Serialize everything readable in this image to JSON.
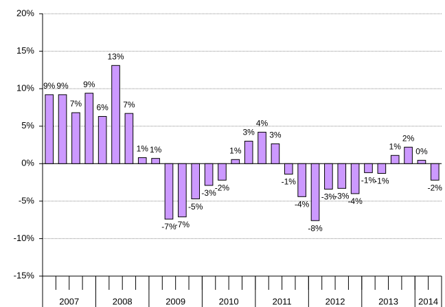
{
  "chart_data": {
    "type": "bar",
    "categories": [
      null,
      null,
      null,
      null,
      null,
      null,
      null,
      null,
      null,
      null,
      null,
      null,
      null,
      null,
      null,
      null,
      null,
      null,
      null,
      null,
      null,
      null,
      null,
      null,
      null,
      null,
      null,
      null,
      null,
      null
    ],
    "x_groups": [
      {
        "label": "2007",
        "count": 4
      },
      {
        "label": "2008",
        "count": 4
      },
      {
        "label": "2009",
        "count": 4
      },
      {
        "label": "2010",
        "count": 4
      },
      {
        "label": "2011",
        "count": 4
      },
      {
        "label": "2012",
        "count": 4
      },
      {
        "label": "2013",
        "count": 4
      },
      {
        "label": "2014",
        "count": 2
      }
    ],
    "values": [
      9.2,
      9.2,
      6.8,
      9.4,
      6.3,
      13.1,
      6.7,
      0.8,
      0.7,
      -7.4,
      -7.1,
      -4.7,
      -2.9,
      -2.2,
      0.55,
      3.0,
      4.2,
      2.65,
      -1.4,
      -4.4,
      -7.6,
      -3.4,
      -3.3,
      -4.0,
      -1.2,
      -1.3,
      1.1,
      2.2,
      0.45,
      -2.2
    ],
    "value_labels": [
      "9%",
      "9%",
      "7%",
      "9%",
      "6%",
      "13%",
      "7%",
      "1%",
      "1%",
      "-7%",
      "-7%",
      "-5%",
      "-3%",
      "-2%",
      "1%",
      "3%",
      "4%",
      "3%",
      "-1%",
      "-4%",
      "-8%",
      "-3%",
      "-3%",
      "-4%",
      "-1%",
      "-1%",
      "1%",
      "2%",
      "0%",
      "-2%"
    ],
    "color": "#cc99ff",
    "ylim": [
      -15,
      20
    ],
    "yticks": [
      {
        "value": -15,
        "label": "-15%"
      },
      {
        "value": -10,
        "label": "-10%"
      },
      {
        "value": -5,
        "label": "-5%"
      },
      {
        "value": 0,
        "label": "0%"
      },
      {
        "value": 5,
        "label": "5%"
      },
      {
        "value": 10,
        "label": "10%"
      },
      {
        "value": 15,
        "label": "15%"
      },
      {
        "value": 20,
        "label": "20%"
      }
    ],
    "grid": true
  }
}
